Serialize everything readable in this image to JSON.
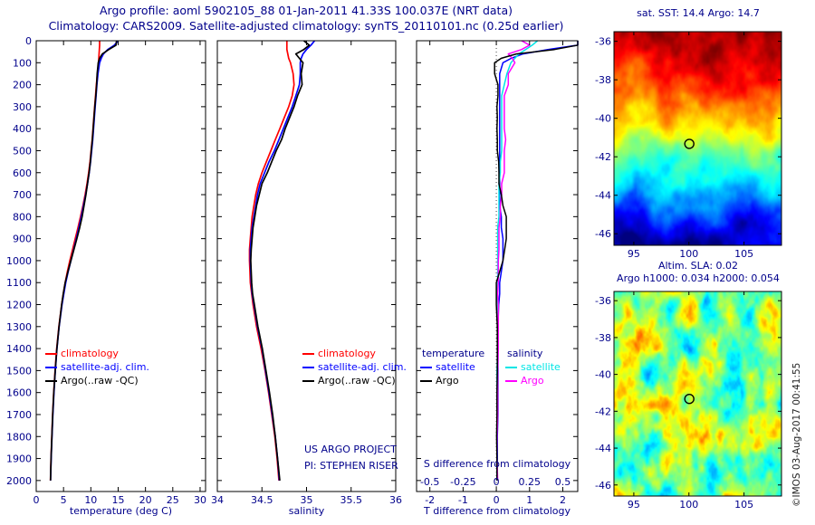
{
  "header": {
    "line1": "Argo profile: aoml 5902105_88 01-Jan-2011 41.33S 100.037E (NRT data)",
    "line2": "Climatology: CARS2009. Satellite-adjusted climatology: synTS_20110101.nc (0.25d earlier)"
  },
  "credits": {
    "line1": "US ARGO PROJECT",
    "line2": "PI: STEPHEN RISER"
  },
  "watermark": "©IMOS 03-Aug-2017 00:41:55",
  "legends": {
    "profile": [
      {
        "label": "climatology",
        "color": "#ff0000"
      },
      {
        "label": "satellite-adj. clim.",
        "color": "#0000ff"
      },
      {
        "label": "Argo(..raw -QC)",
        "color": "#000000"
      }
    ],
    "difference_groups": [
      {
        "header": "temperature",
        "entries": [
          {
            "label": "satellite",
            "color": "#0000ff"
          },
          {
            "label": "Argo",
            "color": "#000000"
          }
        ]
      },
      {
        "header": "salinity",
        "entries": [
          {
            "label": "satellite",
            "color": "#00e5e5"
          },
          {
            "label": "Argo",
            "color": "#ff00ff"
          }
        ]
      }
    ]
  },
  "chart_data": [
    {
      "id": "temperature-profile",
      "type": "line",
      "xlabel": "temperature (deg C)",
      "xlim": [
        0,
        31
      ],
      "xticks": [
        0,
        5,
        10,
        15,
        20,
        25,
        30
      ],
      "ylim": [
        0,
        2050
      ],
      "yticks": [
        0,
        100,
        200,
        300,
        400,
        500,
        600,
        700,
        800,
        900,
        1000,
        1100,
        1200,
        1300,
        1400,
        1500,
        1600,
        1700,
        1800,
        1900,
        2000
      ],
      "depths": [
        0,
        20,
        40,
        60,
        80,
        100,
        150,
        200,
        250,
        300,
        350,
        400,
        450,
        500,
        550,
        600,
        650,
        700,
        750,
        800,
        850,
        900,
        950,
        1000,
        1050,
        1100,
        1150,
        1200,
        1300,
        1400,
        1500,
        1600,
        1700,
        1800,
        1900,
        2000
      ],
      "series": [
        {
          "name": "climatology",
          "color": "#ff0000",
          "values": [
            11.6,
            11.6,
            11.55,
            11.5,
            11.45,
            11.4,
            11.2,
            11.0,
            10.85,
            10.7,
            10.55,
            10.4,
            10.25,
            10.05,
            9.85,
            9.6,
            9.3,
            8.95,
            8.55,
            8.1,
            7.65,
            7.15,
            6.65,
            6.15,
            5.7,
            5.3,
            4.95,
            4.65,
            4.15,
            3.75,
            3.45,
            3.2,
            3.0,
            2.85,
            2.7,
            2.6
          ]
        },
        {
          "name": "satellite-adj. clim.",
          "color": "#0000ff",
          "values": [
            15.0,
            14.3,
            13.1,
            12.3,
            11.9,
            11.6,
            11.3,
            11.1,
            10.95,
            10.8,
            10.65,
            10.5,
            10.35,
            10.15,
            9.95,
            9.7,
            9.4,
            9.05,
            8.65,
            8.25,
            7.8,
            7.35,
            6.85,
            6.35,
            5.85,
            5.4,
            5.05,
            4.72,
            4.2,
            3.8,
            3.5,
            3.25,
            3.05,
            2.88,
            2.73,
            2.62
          ]
        },
        {
          "name": "Argo(..raw -QC)",
          "color": "#000000",
          "values": [
            14.7,
            14.6,
            13.3,
            12.1,
            11.6,
            11.35,
            11.15,
            11.05,
            10.9,
            10.72,
            10.58,
            10.42,
            10.28,
            10.08,
            9.92,
            9.68,
            9.38,
            9.1,
            8.75,
            8.4,
            7.95,
            7.45,
            6.9,
            6.35,
            5.8,
            5.3,
            4.95,
            4.65,
            4.18,
            3.78,
            3.48,
            3.22,
            3.02,
            2.86,
            2.72,
            2.62
          ]
        }
      ]
    },
    {
      "id": "salinity-profile",
      "type": "line",
      "xlabel": "salinity",
      "xlim": [
        34,
        36
      ],
      "xticks": [
        34,
        34.5,
        35,
        35.5,
        36
      ],
      "ylim": [
        0,
        2050
      ],
      "yticks": [
        0,
        100,
        200,
        300,
        400,
        500,
        600,
        700,
        800,
        900,
        1000,
        1100,
        1200,
        1300,
        1400,
        1500,
        1600,
        1700,
        1800,
        1900,
        2000
      ],
      "depths": [
        0,
        20,
        40,
        60,
        80,
        100,
        150,
        200,
        250,
        300,
        350,
        400,
        450,
        500,
        550,
        600,
        650,
        700,
        750,
        800,
        850,
        900,
        950,
        1000,
        1050,
        1100,
        1150,
        1200,
        1300,
        1400,
        1500,
        1600,
        1700,
        1800,
        1900,
        2000
      ],
      "series": [
        {
          "name": "climatology",
          "color": "#ff0000",
          "values": [
            34.78,
            34.78,
            34.78,
            34.79,
            34.8,
            34.82,
            34.85,
            34.86,
            34.84,
            34.8,
            34.75,
            34.7,
            34.65,
            34.6,
            34.55,
            34.5,
            34.46,
            34.43,
            34.41,
            34.39,
            34.38,
            34.37,
            34.36,
            34.36,
            34.365,
            34.37,
            34.385,
            34.4,
            34.44,
            34.49,
            34.535,
            34.575,
            34.61,
            34.645,
            34.67,
            34.69
          ]
        },
        {
          "name": "satellite-adj. clim.",
          "color": "#0000ff",
          "values": [
            35.09,
            35.05,
            35.0,
            34.96,
            34.94,
            34.93,
            34.93,
            34.92,
            34.88,
            34.84,
            34.79,
            34.74,
            34.69,
            34.64,
            34.58,
            34.53,
            34.48,
            34.45,
            34.43,
            34.41,
            34.39,
            34.38,
            34.37,
            34.37,
            34.375,
            34.38,
            34.39,
            34.41,
            34.45,
            34.5,
            34.54,
            34.58,
            34.615,
            34.65,
            34.675,
            34.695
          ]
        },
        {
          "name": "Argo(..raw -QC)",
          "color": "#000000",
          "values": [
            34.97,
            35.03,
            34.97,
            34.88,
            34.92,
            34.96,
            34.94,
            34.95,
            34.9,
            34.86,
            34.81,
            34.76,
            34.72,
            34.66,
            34.61,
            34.56,
            34.5,
            34.47,
            34.44,
            34.42,
            34.4,
            34.39,
            34.38,
            34.375,
            34.38,
            34.385,
            34.395,
            34.415,
            34.455,
            34.505,
            34.545,
            34.585,
            34.62,
            34.65,
            34.675,
            34.7
          ]
        }
      ]
    },
    {
      "id": "difference-profile",
      "type": "line",
      "xlabel": "T difference from climatology",
      "x2label": "S difference from climatology",
      "xlim": [
        -2.4,
        2.45
      ],
      "xticks": [
        -2,
        -1,
        0,
        1,
        2
      ],
      "x2ticks": [
        -0.5,
        -0.25,
        0,
        0.25,
        0.5
      ],
      "x2_scale_factor": 4,
      "zero_line": true,
      "ylim": [
        0,
        2050
      ],
      "yticks": [
        0,
        100,
        200,
        300,
        400,
        500,
        600,
        700,
        800,
        900,
        1000,
        1100,
        1200,
        1300,
        1400,
        1500,
        1600,
        1700,
        1800,
        1900,
        2000
      ],
      "depths": [
        0,
        20,
        40,
        60,
        80,
        100,
        150,
        200,
        250,
        300,
        350,
        400,
        450,
        500,
        550,
        600,
        650,
        700,
        750,
        800,
        850,
        900,
        950,
        1000,
        1050,
        1100,
        1150,
        1200,
        1300,
        1400,
        1500,
        1600,
        1700,
        1800,
        1900,
        2000
      ],
      "series": [
        {
          "name": "satellite",
          "group": "temperature",
          "axis": "T",
          "color": "#0000ff",
          "values": [
            3.4,
            2.7,
            1.55,
            0.8,
            0.45,
            0.2,
            0.1,
            0.1,
            0.1,
            0.1,
            0.1,
            0.1,
            0.1,
            0.1,
            0.1,
            0.1,
            0.1,
            0.1,
            0.1,
            0.15,
            0.15,
            0.2,
            0.2,
            0.2,
            0.15,
            0.1,
            0.1,
            0.07,
            0.05,
            0.05,
            0.05,
            0.05,
            0.05,
            0.03,
            0.03,
            0.02
          ]
        },
        {
          "name": "satellite",
          "group": "salinity",
          "axis": "S",
          "color": "#00e5e5",
          "values": [
            0.31,
            0.27,
            0.22,
            0.17,
            0.14,
            0.11,
            0.08,
            0.06,
            0.04,
            0.04,
            0.04,
            0.04,
            0.04,
            0.04,
            0.03,
            0.03,
            0.02,
            0.02,
            0.02,
            0.02,
            0.01,
            0.01,
            0.01,
            0.01,
            0.01,
            0.01,
            0.005,
            0.01,
            0.01,
            0.01,
            0.005,
            0.005,
            0.005,
            0.005,
            0.005,
            0.005
          ]
        },
        {
          "name": "Argo",
          "group": "salinity",
          "axis": "S",
          "color": "#ff00ff",
          "values": [
            0.19,
            0.25,
            0.19,
            0.09,
            0.12,
            0.14,
            0.09,
            0.09,
            0.06,
            0.06,
            0.06,
            0.06,
            0.07,
            0.06,
            0.06,
            0.06,
            0.04,
            0.04,
            0.03,
            0.03,
            0.02,
            0.02,
            0.02,
            0.015,
            0.015,
            0.015,
            0.01,
            0.015,
            0.015,
            0.015,
            0.01,
            0.01,
            0.01,
            0.005,
            0.005,
            0.01
          ]
        },
        {
          "name": "Argo",
          "group": "temperature",
          "axis": "T",
          "color": "#000000",
          "values": [
            3.1,
            3.0,
            1.75,
            0.6,
            0.15,
            -0.05,
            -0.05,
            0.05,
            0.05,
            0.02,
            0.03,
            0.02,
            0.03,
            0.03,
            0.07,
            0.08,
            0.08,
            0.15,
            0.2,
            0.3,
            0.3,
            0.3,
            0.25,
            0.2,
            0.1,
            0.0,
            0.0,
            0.0,
            0.03,
            0.03,
            0.03,
            0.02,
            0.02,
            0.01,
            0.02,
            0.02
          ]
        }
      ]
    },
    {
      "id": "sst-map",
      "type": "heatmap",
      "title": "sat. SST: 14.4 Argo: 14.7",
      "sat_sst": 14.4,
      "argo_sst": 14.7,
      "xlim": [
        93.2,
        108.4
      ],
      "ylim": [
        -35.5,
        -46.6
      ],
      "xticks": [
        95,
        100,
        105
      ],
      "yticks": [
        -36,
        -38,
        -40,
        -42,
        -44,
        -46
      ],
      "marker": {
        "lon": 100.037,
        "lat": -41.33
      },
      "colormap": "jet",
      "color_range": [
        8.5,
        17.2
      ],
      "lat_temperature_gradient": [
        [
          -35.5,
          16.9
        ],
        [
          -37,
          16.3
        ],
        [
          -38,
          15.8
        ],
        [
          -39,
          15.0
        ],
        [
          -40,
          14.3
        ],
        [
          -41,
          13.6
        ],
        [
          -42,
          12.4
        ],
        [
          -43,
          11.6
        ],
        [
          -44,
          10.9
        ],
        [
          -45,
          10.0
        ],
        [
          -46,
          9.2
        ],
        [
          -46.6,
          8.8
        ]
      ]
    },
    {
      "id": "sla-map",
      "type": "heatmap",
      "title_line1": "Altim. SLA: 0.02",
      "title_line2": "Argo h1000: 0.034 h2000: 0.054",
      "altim_sla": 0.02,
      "argo_h1000": 0.034,
      "argo_h2000": 0.054,
      "xlim": [
        93.2,
        108.4
      ],
      "ylim": [
        -35.5,
        -46.6
      ],
      "xticks": [
        95,
        100,
        105
      ],
      "yticks": [
        -36,
        -38,
        -40,
        -42,
        -44,
        -46
      ],
      "marker": {
        "lon": 100.037,
        "lat": -41.33
      },
      "colormap": "jet",
      "value_range": [
        -0.2,
        0.2
      ]
    }
  ]
}
